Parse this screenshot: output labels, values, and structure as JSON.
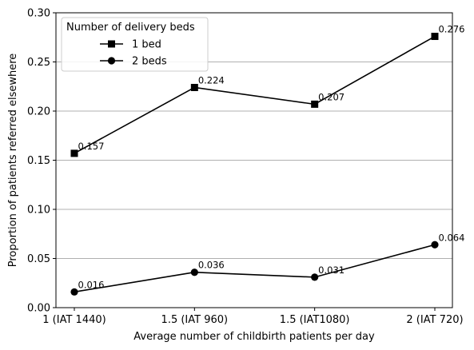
{
  "chart_data": {
    "type": "line",
    "categories": [
      "1 (IAT 1440)",
      "1.5 (IAT 960)",
      "1.5 (IAT1080)",
      "2 (IAT 720)"
    ],
    "series": [
      {
        "name": "1 bed",
        "marker": "square",
        "values": [
          0.157,
          0.224,
          0.207,
          0.276
        ],
        "labels": [
          "0.157",
          "0.224",
          "0.207",
          "0.276"
        ]
      },
      {
        "name": "2 beds",
        "marker": "circle",
        "values": [
          0.016,
          0.036,
          0.031,
          0.064
        ],
        "labels": [
          "0.016",
          "0.036",
          "0.031",
          "0.064"
        ]
      }
    ],
    "xlabel": "Average number of childbirth patients per day",
    "ylabel": "Proportion of patients referred elsewhere",
    "ylim": [
      0.0,
      0.3
    ],
    "yticks": [
      0.0,
      0.05,
      0.1,
      0.15,
      0.2,
      0.25,
      0.3
    ],
    "ytick_labels": [
      "0.00",
      "0.05",
      "0.10",
      "0.15",
      "0.20",
      "0.25",
      "0.30"
    ],
    "legend": {
      "title": "Number of delivery beds",
      "placement": "upper-left"
    },
    "grid": "horizontal",
    "line_color": "#000000",
    "grid_color": "#b0b0b0"
  }
}
